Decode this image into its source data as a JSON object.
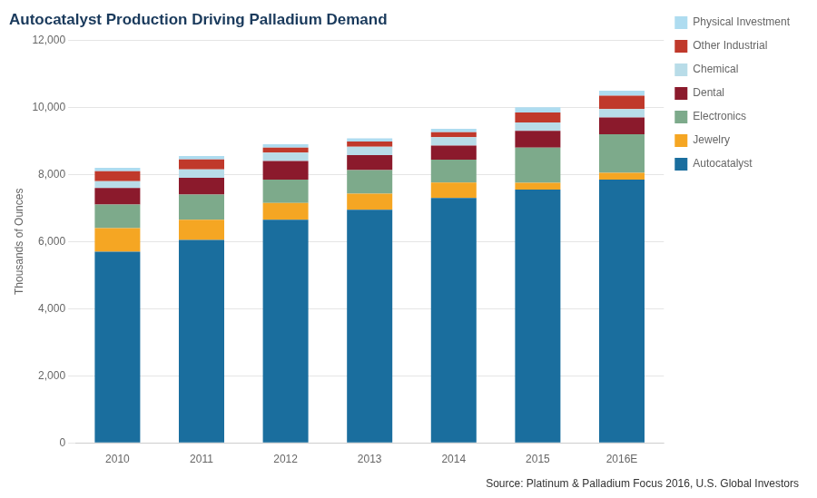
{
  "chart_data": {
    "type": "bar",
    "stacked": true,
    "title": "Autocatalyst Production Driving Palladium Demand",
    "ylabel": "Thousands of Ounces",
    "annotations": [
      "Source: Platinum & Palladium Focus 2016, U.S. Global Investors"
    ],
    "categories": [
      "2010",
      "2011",
      "2012",
      "2013",
      "2014",
      "2015",
      "2016E"
    ],
    "series": [
      {
        "name": "Autocatalyst",
        "color": "#1a6e9e",
        "values": [
          5700,
          6050,
          6650,
          6950,
          7300,
          7550,
          7850
        ]
      },
      {
        "name": "Jewelry",
        "color": "#f5a623",
        "values": [
          700,
          600,
          500,
          480,
          460,
          200,
          200
        ]
      },
      {
        "name": "Electronics",
        "color": "#7daa8b",
        "values": [
          700,
          750,
          700,
          700,
          680,
          1050,
          1150
        ]
      },
      {
        "name": "Dental",
        "color": "#8b1a2c",
        "values": [
          500,
          500,
          550,
          450,
          420,
          500,
          500
        ]
      },
      {
        "name": "Chemical",
        "color": "#b8dce8",
        "values": [
          200,
          250,
          250,
          250,
          250,
          250,
          250
        ]
      },
      {
        "name": "Other Industrial",
        "color": "#c0392b",
        "values": [
          300,
          300,
          150,
          150,
          150,
          300,
          400
        ]
      },
      {
        "name": "Physical Investment",
        "color": "#aedcf0",
        "values": [
          100,
          100,
          100,
          100,
          100,
          150,
          150
        ]
      }
    ],
    "ylim": [
      0,
      12000
    ],
    "yticks": [
      0,
      {
        "value": 2000,
        "label": "2,000"
      },
      {
        "value": 4000,
        "label": "4,000"
      },
      {
        "value": 6000,
        "label": "6,000"
      },
      {
        "value": 8000,
        "label": "8,000"
      },
      {
        "value": 10000,
        "label": "10,000"
      },
      {
        "value": 12000,
        "label": "12,000"
      }
    ],
    "grid": true,
    "legend": "right"
  }
}
